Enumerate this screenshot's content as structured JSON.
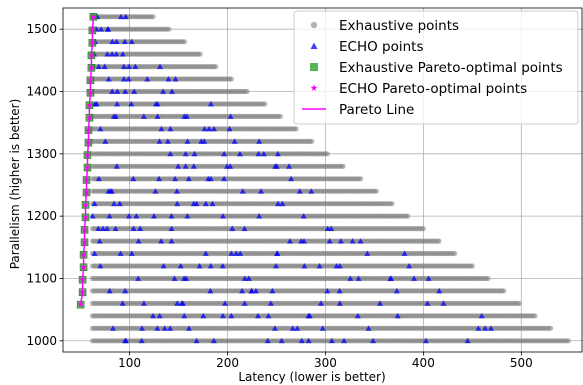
{
  "chart_data": {
    "type": "scatter",
    "xlabel": "Latency (lower is better)",
    "ylabel": "Parallelism (higher is better)",
    "xlim": [
      32,
      563
    ],
    "ylim": [
      982,
      1534
    ],
    "x_ticks": [
      100,
      200,
      300,
      400,
      500
    ],
    "y_ticks": [
      1000,
      1100,
      1200,
      1300,
      1400,
      1500
    ],
    "grid": true,
    "legend_position": "top-right",
    "exhaustive_grid": {
      "y_min": 1000,
      "y_max": 1520,
      "y_step": 20,
      "x_start_bottom": 62,
      "x_start_top": 62,
      "x_end_bottom": 548,
      "x_end_top": 124,
      "x_step": 2
    },
    "echo_grid": {
      "y_min": 1000,
      "y_max": 1520,
      "y_step": 20
    },
    "pareto_points": [
      [
        50,
        1058
      ],
      [
        52,
        1078
      ],
      [
        52,
        1098
      ],
      [
        53,
        1118
      ],
      [
        53,
        1138
      ],
      [
        54,
        1158
      ],
      [
        54,
        1178
      ],
      [
        55,
        1198
      ],
      [
        55,
        1218
      ],
      [
        56,
        1238
      ],
      [
        56,
        1258
      ],
      [
        57,
        1278
      ],
      [
        57,
        1298
      ],
      [
        58,
        1318
      ],
      [
        58,
        1338
      ],
      [
        59,
        1358
      ],
      [
        59,
        1378
      ],
      [
        60,
        1398
      ],
      [
        60,
        1418
      ],
      [
        61,
        1438
      ],
      [
        61,
        1458
      ],
      [
        62,
        1478
      ],
      [
        62,
        1498
      ],
      [
        63,
        1520
      ]
    ],
    "series": [
      {
        "name": "Exhaustive points",
        "color": "#808080",
        "marker": "circle"
      },
      {
        "name": "ECHO points",
        "color": "#0000ff",
        "marker": "triangle"
      },
      {
        "name": "Exhaustive Pareto-optimal points",
        "color": "#2ca02c",
        "marker": "square"
      },
      {
        "name": "ECHO Pareto-optimal points",
        "color": "#ff00ff",
        "marker": "star"
      },
      {
        "name": "Pareto Line",
        "color": "#ff00ff",
        "marker": "line"
      }
    ]
  }
}
